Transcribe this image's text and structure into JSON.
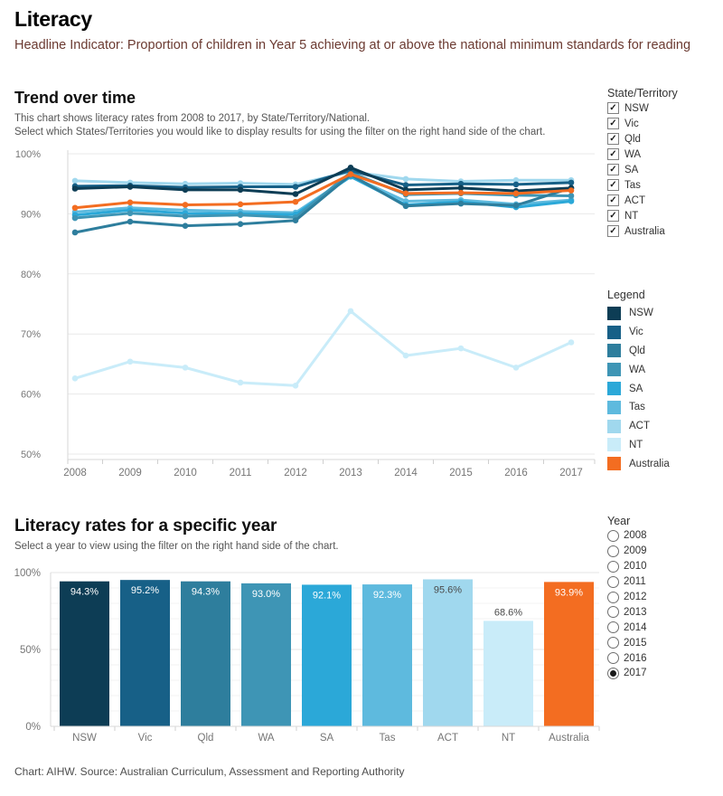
{
  "page": {
    "title": "Literacy",
    "subtitle": "Headline Indicator: Proportion of children in Year 5 achieving at or above the national minimum standards for reading",
    "footer": "Chart: AIHW. Source: Australian Curriculum, Assessment and Reporting Authority"
  },
  "icons": {
    "checkbox_check": "✓"
  },
  "trend_section": {
    "heading": "Trend over time",
    "description_line1": "This chart shows literacy rates from 2008 to 2017, by State/Territory/National.",
    "description_line2": "Select which States/Territories you would like to display results for using the filter on the right hand side of the chart."
  },
  "state_filter": {
    "label": "State/Territory",
    "options": [
      {
        "label": "NSW",
        "checked": true
      },
      {
        "label": "Vic",
        "checked": true
      },
      {
        "label": "Qld",
        "checked": true
      },
      {
        "label": "WA",
        "checked": true
      },
      {
        "label": "SA",
        "checked": true
      },
      {
        "label": "Tas",
        "checked": true
      },
      {
        "label": "ACT",
        "checked": true
      },
      {
        "label": "NT",
        "checked": true
      },
      {
        "label": "Australia",
        "checked": true
      }
    ]
  },
  "legend": {
    "label": "Legend",
    "items": [
      {
        "label": "NSW",
        "color": "#0d3d55"
      },
      {
        "label": "Vic",
        "color": "#176087"
      },
      {
        "label": "Qld",
        "color": "#2e7e9d"
      },
      {
        "label": "WA",
        "color": "#3e95b5"
      },
      {
        "label": "SA",
        "color": "#2ba8d8"
      },
      {
        "label": "Tas",
        "color": "#5ebade"
      },
      {
        "label": "ACT",
        "color": "#a0d8ee"
      },
      {
        "label": "NT",
        "color": "#c9ecf9"
      },
      {
        "label": "Australia",
        "color": "#f36d21"
      }
    ]
  },
  "year_section": {
    "heading": "Literacy rates for a specific year",
    "description": "Select a year to view using the filter on the right hand side of the chart.",
    "filter_label": "Year",
    "options": [
      "2008",
      "2009",
      "2010",
      "2011",
      "2012",
      "2013",
      "2014",
      "2015",
      "2016",
      "2017"
    ],
    "selected": "2017"
  },
  "chart_data": [
    {
      "type": "line",
      "title": "Trend over time",
      "x": [
        2008,
        2009,
        2010,
        2011,
        2012,
        2013,
        2014,
        2015,
        2016,
        2017
      ],
      "ylim": [
        50,
        100
      ],
      "yticks": [
        {
          "v": 100,
          "label": "100%"
        },
        {
          "v": 90,
          "label": "90%"
        },
        {
          "v": 80,
          "label": "80%"
        },
        {
          "v": 70,
          "label": "70%"
        },
        {
          "v": 60,
          "label": "60%"
        },
        {
          "v": 50,
          "label": "50%"
        }
      ],
      "grid": true,
      "legend_position": "right",
      "series": [
        {
          "name": "NSW",
          "color": "#0d3d55",
          "values": [
            94.2,
            94.5,
            94.0,
            94.0,
            93.3,
            97.7,
            94.0,
            94.3,
            93.8,
            94.3
          ]
        },
        {
          "name": "Vic",
          "color": "#176087",
          "values": [
            94.6,
            94.7,
            94.4,
            94.5,
            94.5,
            97.2,
            94.8,
            95.0,
            94.9,
            95.2
          ]
        },
        {
          "name": "Qld",
          "color": "#2e7e9d",
          "values": [
            86.9,
            88.7,
            88.0,
            88.3,
            88.9,
            96.5,
            91.3,
            91.7,
            91.4,
            94.3
          ]
        },
        {
          "name": "WA",
          "color": "#3e95b5",
          "values": [
            89.3,
            90.1,
            89.6,
            89.8,
            89.4,
            96.9,
            93.2,
            93.4,
            93.1,
            93.0
          ]
        },
        {
          "name": "SA",
          "color": "#2ba8d8",
          "values": [
            89.8,
            90.6,
            90.1,
            90.0,
            89.9,
            96.2,
            91.5,
            92.0,
            91.1,
            92.1
          ]
        },
        {
          "name": "Tas",
          "color": "#5ebade",
          "values": [
            90.3,
            91.0,
            90.6,
            90.4,
            90.2,
            96.3,
            92.1,
            92.3,
            91.6,
            92.3
          ]
        },
        {
          "name": "ACT",
          "color": "#a0d8ee",
          "values": [
            95.5,
            95.2,
            95.0,
            95.1,
            94.9,
            97.0,
            95.8,
            95.4,
            95.6,
            95.6
          ]
        },
        {
          "name": "NT",
          "color": "#c9ecf9",
          "values": [
            62.6,
            65.4,
            64.4,
            61.9,
            61.4,
            73.8,
            66.4,
            67.6,
            64.4,
            68.6
          ]
        },
        {
          "name": "Australia",
          "color": "#f36d21",
          "values": [
            91.0,
            91.9,
            91.5,
            91.6,
            92.0,
            96.6,
            93.4,
            93.5,
            93.4,
            93.9
          ]
        }
      ]
    },
    {
      "type": "bar",
      "title": "Literacy rates for a specific year",
      "year": "2017",
      "categories": [
        "NSW",
        "Vic",
        "Qld",
        "WA",
        "SA",
        "Tas",
        "ACT",
        "NT",
        "Australia"
      ],
      "values": [
        94.3,
        95.2,
        94.3,
        93.0,
        92.1,
        92.3,
        95.6,
        68.6,
        93.9
      ],
      "labels": [
        "94.3%",
        "95.2%",
        "94.3%",
        "93.0%",
        "92.1%",
        "92.3%",
        "95.6%",
        "68.6%",
        "93.9%"
      ],
      "colors": [
        "#0d3d55",
        "#176087",
        "#2e7e9d",
        "#3e95b5",
        "#2ba8d8",
        "#5ebade",
        "#a0d8ee",
        "#c9ecf9",
        "#f36d21"
      ],
      "label_styles": [
        {
          "pos": "inside",
          "color": "#ffffff"
        },
        {
          "pos": "inside",
          "color": "#ffffff"
        },
        {
          "pos": "inside",
          "color": "#ffffff"
        },
        {
          "pos": "inside",
          "color": "#ffffff"
        },
        {
          "pos": "inside",
          "color": "#ffffff"
        },
        {
          "pos": "inside",
          "color": "#ffffff"
        },
        {
          "pos": "inside",
          "color": "#4a4a4a"
        },
        {
          "pos": "above",
          "color": "#4a4a4a"
        },
        {
          "pos": "inside",
          "color": "#ffffff"
        }
      ],
      "ylim": [
        0,
        100
      ],
      "yticks": [
        {
          "v": 0,
          "label": "0%"
        },
        {
          "v": 50,
          "label": "50%"
        },
        {
          "v": 100,
          "label": "100%"
        }
      ],
      "grid": true
    }
  ]
}
